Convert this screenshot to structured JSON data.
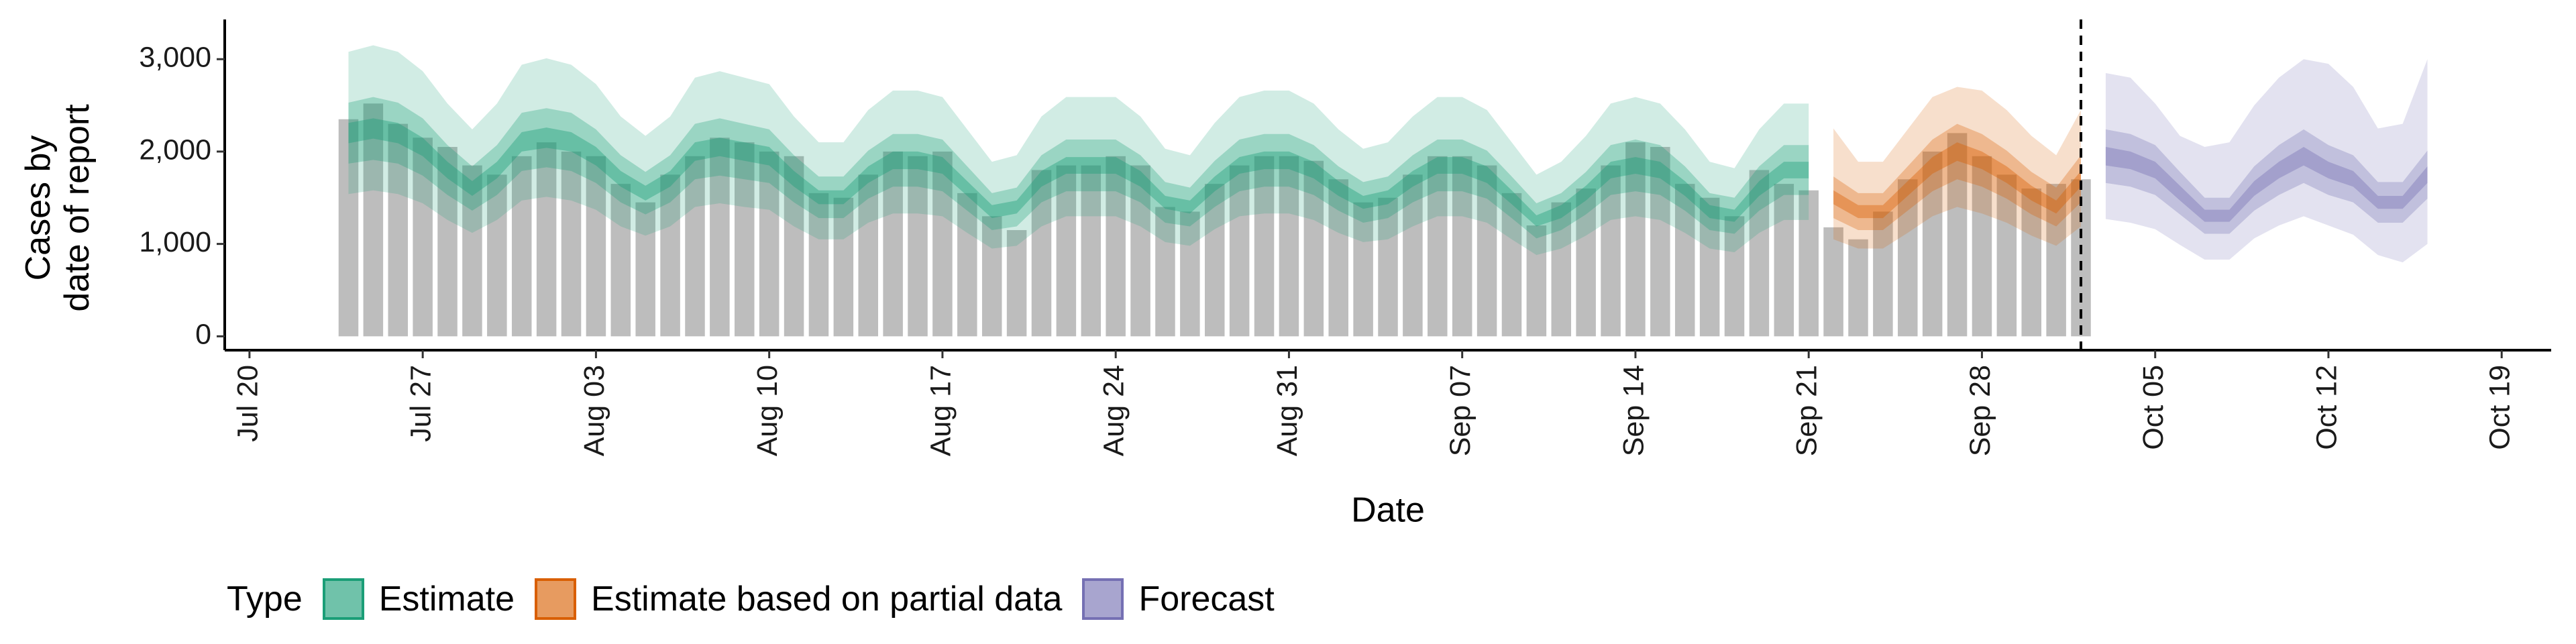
{
  "chart_data": {
    "type": "bar",
    "x": [
      "Jul 24",
      "Jul 25",
      "Jul 26",
      "Jul 27",
      "Jul 28",
      "Jul 29",
      "Jul 30",
      "Jul 31",
      "Aug 01",
      "Aug 02",
      "Aug 03",
      "Aug 04",
      "Aug 05",
      "Aug 06",
      "Aug 07",
      "Aug 08",
      "Aug 09",
      "Aug 10",
      "Aug 11",
      "Aug 12",
      "Aug 13",
      "Aug 14",
      "Aug 15",
      "Aug 16",
      "Aug 17",
      "Aug 18",
      "Aug 19",
      "Aug 20",
      "Aug 21",
      "Aug 22",
      "Aug 23",
      "Aug 24",
      "Aug 25",
      "Aug 26",
      "Aug 27",
      "Aug 28",
      "Aug 29",
      "Aug 30",
      "Aug 31",
      "Sep 01",
      "Sep 02",
      "Sep 03",
      "Sep 04",
      "Sep 05",
      "Sep 06",
      "Sep 07",
      "Sep 08",
      "Sep 09",
      "Sep 10",
      "Sep 11",
      "Sep 12",
      "Sep 13",
      "Sep 14",
      "Sep 15",
      "Sep 16",
      "Sep 17",
      "Sep 18",
      "Sep 19",
      "Sep 20",
      "Sep 21",
      "Sep 22",
      "Sep 23",
      "Sep 24",
      "Sep 25",
      "Sep 26",
      "Sep 27",
      "Sep 28",
      "Sep 29",
      "Sep 30",
      "Oct 01",
      "Oct 02"
    ],
    "values": [
      2350,
      2520,
      2300,
      2150,
      2050,
      1850,
      1750,
      1950,
      2100,
      2000,
      1950,
      1650,
      1450,
      1750,
      1950,
      2150,
      2100,
      2000,
      1950,
      1550,
      1500,
      1750,
      2000,
      1950,
      2000,
      1550,
      1300,
      1150,
      1800,
      1850,
      1850,
      1950,
      1850,
      1400,
      1350,
      1650,
      1850,
      1950,
      1950,
      1900,
      1700,
      1450,
      1500,
      1750,
      1950,
      1950,
      1850,
      1550,
      1200,
      1450,
      1600,
      1850,
      2100,
      2050,
      1650,
      1500,
      1300,
      1800,
      1650,
      1580,
      1180,
      1050,
      1350,
      1700,
      2000,
      2200,
      1950,
      1750,
      1600,
      1650,
      1700
    ],
    "color": "#bdbdbd",
    "series": [
      {
        "name": "Estimate",
        "color": "#1b9e77",
        "x": [
          "Jul 24",
          "Jul 25",
          "Jul 26",
          "Jul 27",
          "Jul 28",
          "Jul 29",
          "Jul 30",
          "Jul 31",
          "Aug 01",
          "Aug 02",
          "Aug 03",
          "Aug 04",
          "Aug 05",
          "Aug 06",
          "Aug 07",
          "Aug 08",
          "Aug 09",
          "Aug 10",
          "Aug 11",
          "Aug 12",
          "Aug 13",
          "Aug 14",
          "Aug 15",
          "Aug 16",
          "Aug 17",
          "Aug 18",
          "Aug 19",
          "Aug 20",
          "Aug 21",
          "Aug 22",
          "Aug 23",
          "Aug 24",
          "Aug 25",
          "Aug 26",
          "Aug 27",
          "Aug 28",
          "Aug 29",
          "Aug 30",
          "Aug 31",
          "Sep 01",
          "Sep 02",
          "Sep 03",
          "Sep 04",
          "Sep 05",
          "Sep 06",
          "Sep 07",
          "Sep 08",
          "Sep 09",
          "Sep 10",
          "Sep 11",
          "Sep 12",
          "Sep 13",
          "Sep 14",
          "Sep 15",
          "Sep 16",
          "Sep 17",
          "Sep 18",
          "Sep 19",
          "Sep 20",
          "Sep 21"
        ],
        "bands": [
          {
            "lower": [
              1540,
              1580,
              1540,
              1440,
              1260,
              1120,
              1260,
              1470,
              1510,
              1470,
              1370,
              1190,
              1090,
              1190,
              1400,
              1440,
              1400,
              1370,
              1190,
              1050,
              1050,
              1230,
              1330,
              1330,
              1300,
              1120,
              950,
              980,
              1190,
              1300,
              1300,
              1300,
              1190,
              1020,
              980,
              1160,
              1300,
              1330,
              1330,
              1260,
              1120,
              1020,
              1050,
              1190,
              1300,
              1300,
              1230,
              1050,
              880,
              950,
              1090,
              1260,
              1300,
              1260,
              1120,
              950,
              910,
              1120,
              1260,
              1260
            ],
            "upper": [
              3080,
              3150,
              3080,
              2870,
              2520,
              2240,
              2520,
              2940,
              3010,
              2940,
              2730,
              2380,
              2170,
              2380,
              2800,
              2870,
              2800,
              2730,
              2380,
              2100,
              2100,
              2450,
              2660,
              2660,
              2590,
              2240,
              1890,
              1960,
              2380,
              2590,
              2590,
              2590,
              2380,
              2030,
              1960,
              2310,
              2590,
              2660,
              2660,
              2520,
              2240,
              2030,
              2100,
              2380,
              2590,
              2590,
              2450,
              2100,
              1750,
              1890,
              2170,
              2520,
              2590,
              2520,
              2240,
              1890,
              1820,
              2240,
              2520,
              2520
            ]
          },
          {
            "lower": [
              1870,
              1910,
              1870,
              1740,
              1530,
              1360,
              1530,
              1790,
              1830,
              1790,
              1660,
              1450,
              1320,
              1450,
              1700,
              1740,
              1700,
              1660,
              1450,
              1280,
              1280,
              1490,
              1620,
              1620,
              1570,
              1360,
              1150,
              1190,
              1450,
              1570,
              1570,
              1570,
              1450,
              1230,
              1190,
              1400,
              1570,
              1620,
              1620,
              1530,
              1360,
              1230,
              1280,
              1450,
              1570,
              1570,
              1490,
              1280,
              1060,
              1150,
              1320,
              1530,
              1570,
              1530,
              1360,
              1150,
              1110,
              1360,
              1530,
              1530
            ],
            "upper": [
              2530,
              2590,
              2530,
              2360,
              2070,
              1840,
              2070,
              2420,
              2470,
              2420,
              2240,
              1960,
              1780,
              1960,
              2300,
              2360,
              2300,
              2240,
              1960,
              1730,
              1730,
              2010,
              2190,
              2190,
              2130,
              1840,
              1550,
              1610,
              1960,
              2130,
              2130,
              2130,
              1960,
              1670,
              1610,
              1900,
              2130,
              2190,
              2190,
              2070,
              1840,
              1670,
              1730,
              1960,
              2130,
              2130,
              2010,
              1730,
              1440,
              1550,
              1780,
              2070,
              2130,
              2070,
              1840,
              1550,
              1500,
              1840,
              2070,
              2070
            ]
          },
          {
            "lower": [
              2090,
              2140,
              2090,
              1950,
              1710,
              1520,
              1710,
              2000,
              2040,
              2000,
              1850,
              1620,
              1470,
              1620,
              1900,
              1950,
              1900,
              1850,
              1620,
              1430,
              1430,
              1660,
              1810,
              1810,
              1760,
              1520,
              1280,
              1330,
              1620,
              1760,
              1760,
              1760,
              1620,
              1380,
              1330,
              1570,
              1760,
              1810,
              1810,
              1710,
              1520,
              1380,
              1430,
              1620,
              1760,
              1760,
              1660,
              1430,
              1190,
              1280,
              1470,
              1710,
              1760,
              1710,
              1520,
              1280,
              1240,
              1520,
              1710,
              1710
            ],
            "upper": [
              2310,
              2360,
              2310,
              2150,
              1890,
              1680,
              1890,
              2210,
              2260,
              2210,
              2050,
              1790,
              1630,
              1790,
              2100,
              2150,
              2100,
              2050,
              1790,
              1580,
              1580,
              1840,
              2000,
              2000,
              1940,
              1680,
              1420,
              1470,
              1790,
              1940,
              1940,
              1940,
              1790,
              1520,
              1470,
              1730,
              1940,
              2000,
              2000,
              1890,
              1680,
              1520,
              1580,
              1790,
              1940,
              1940,
              1840,
              1580,
              1310,
              1420,
              1630,
              1890,
              1940,
              1890,
              1680,
              1420,
              1370,
              1680,
              1890,
              1890
            ]
          }
        ]
      },
      {
        "name": "Estimate based on partial data",
        "color": "#d95f02",
        "x": [
          "Sep 22",
          "Sep 23",
          "Sep 24",
          "Sep 25",
          "Sep 26",
          "Sep 27",
          "Sep 28",
          "Sep 29",
          "Sep 30",
          "Oct 01",
          "Oct 02"
        ],
        "bands": [
          {
            "lower": [
              1050,
              950,
              950,
              1120,
              1300,
              1400,
              1330,
              1230,
              1090,
              980,
              1190
            ],
            "upper": [
              2250,
              1890,
              1890,
              2240,
              2590,
              2700,
              2660,
              2450,
              2170,
              1960,
              2450
            ]
          },
          {
            "lower": [
              1280,
              1150,
              1150,
              1360,
              1570,
              1700,
              1620,
              1490,
              1320,
              1190,
              1450
            ],
            "upper": [
              1730,
              1550,
              1550,
              1840,
              2130,
              2300,
              2190,
              2010,
              1780,
              1610,
              1960
            ]
          },
          {
            "lower": [
              1430,
              1280,
              1280,
              1520,
              1760,
              1900,
              1810,
              1660,
              1470,
              1330,
              1620
            ],
            "upper": [
              1580,
              1420,
              1420,
              1680,
              1940,
              2100,
              2000,
              1840,
              1630,
              1470,
              1790
            ]
          }
        ]
      },
      {
        "name": "Forecast",
        "color": "#7570b3",
        "x": [
          "Oct 03",
          "Oct 04",
          "Oct 05",
          "Oct 06",
          "Oct 07",
          "Oct 08",
          "Oct 09",
          "Oct 10",
          "Oct 11",
          "Oct 12",
          "Oct 13",
          "Oct 14",
          "Oct 15",
          "Oct 16"
        ],
        "bands": [
          {
            "lower": [
              1270,
              1230,
              1160,
              990,
              830,
              830,
              1060,
              1200,
              1300,
              1200,
              1100,
              880,
              800,
              1000
            ],
            "upper": [
              2850,
              2800,
              2520,
              2170,
              2050,
              2100,
              2500,
              2800,
              3000,
              2950,
              2700,
              2250,
              2300,
              3000
            ]
          },
          {
            "lower": [
              1660,
              1620,
              1530,
              1320,
              1110,
              1110,
              1360,
              1530,
              1660,
              1530,
              1450,
              1230,
              1230,
              1490
            ],
            "upper": [
              2240,
              2190,
              2070,
              1780,
              1500,
              1500,
              1840,
              2070,
              2240,
              2070,
              1960,
              1670,
              1670,
              2010
            ]
          },
          {
            "lower": [
              1850,
              1810,
              1710,
              1470,
              1240,
              1240,
              1520,
              1710,
              1850,
              1710,
              1620,
              1380,
              1380,
              1660
            ],
            "upper": [
              2050,
              2000,
              1890,
              1630,
              1370,
              1370,
              1680,
              1890,
              2050,
              1890,
              1790,
              1520,
              1520,
              1840
            ]
          }
        ]
      }
    ],
    "vline_x": "Oct 02",
    "xlabel": "Date",
    "ylabel": "Cases by\ndate of report",
    "legend_title": "Type",
    "legend": "bottom",
    "xlim": [
      "Jul 19",
      "Oct 21"
    ],
    "xticks": [
      "Jul 20",
      "Jul 27",
      "Aug 03",
      "Aug 10",
      "Aug 17",
      "Aug 24",
      "Aug 31",
      "Sep 07",
      "Sep 14",
      "Sep 21",
      "Sep 28",
      "Oct 05",
      "Oct 12",
      "Oct 19"
    ],
    "ylim": [
      -150,
      3430
    ],
    "yticks": [
      0,
      {
        "value": 1000,
        "label": "1,000"
      },
      {
        "value": 2000,
        "label": "2,000"
      },
      {
        "value": 3000,
        "label": "3,000"
      }
    ],
    "grid": false
  }
}
